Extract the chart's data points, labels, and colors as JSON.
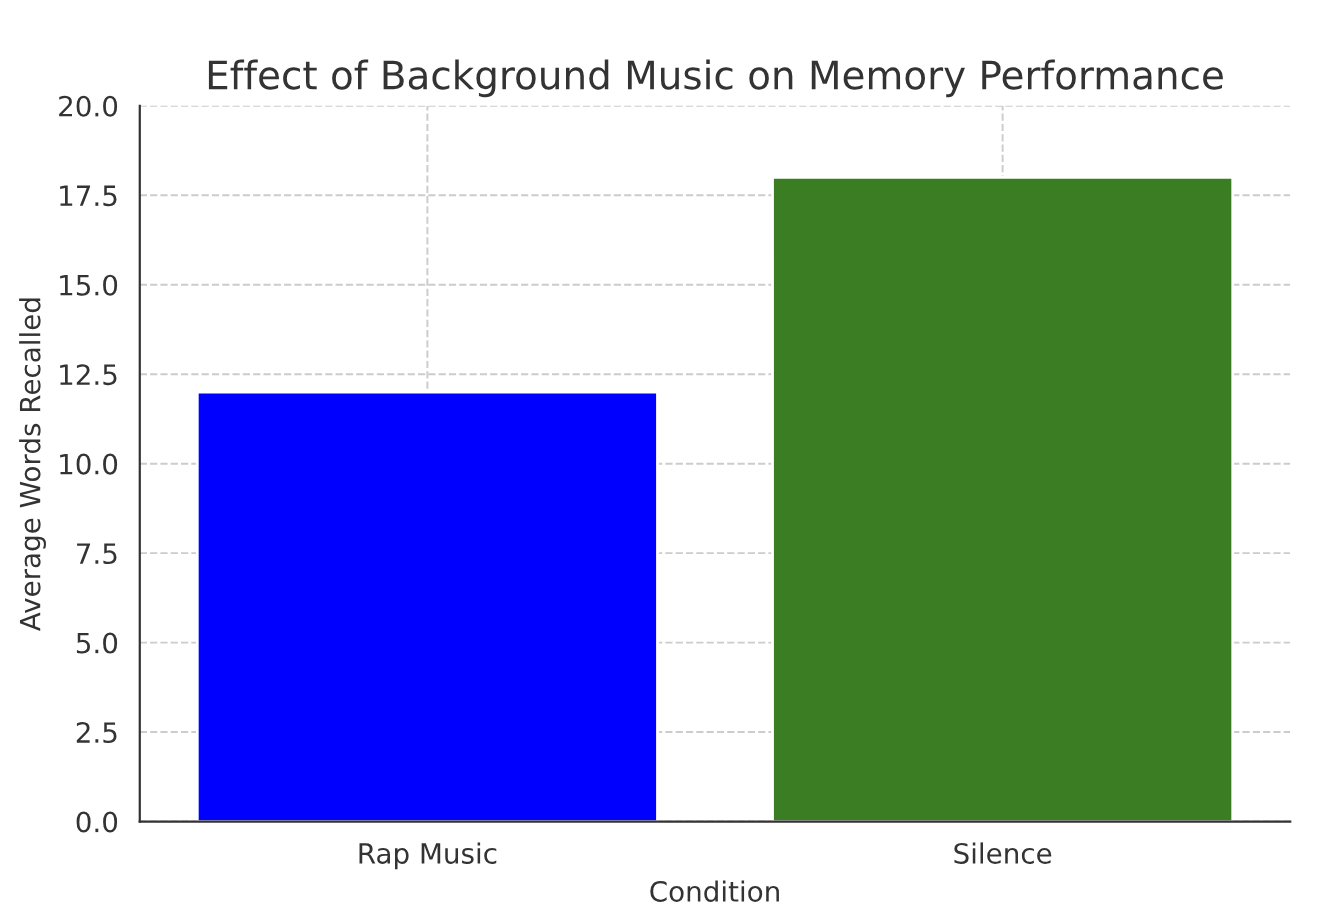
{
  "chart_data": {
    "type": "bar",
    "title": "Effect of Background Music on Memory Performance",
    "xlabel": "Condition",
    "ylabel": "Average Words Recalled",
    "categories": [
      "Rap Music",
      "Silence"
    ],
    "values": [
      12,
      18
    ],
    "colors": [
      "#0000ff",
      "#3a7d22"
    ],
    "ylim": [
      0,
      20
    ],
    "yticks": [
      {
        "value": 0,
        "label": "0.0"
      },
      {
        "value": 2.5,
        "label": "2.5"
      },
      {
        "value": 5,
        "label": "5.0"
      },
      {
        "value": 7.5,
        "label": "7.5"
      },
      {
        "value": 10,
        "label": "10.0"
      },
      {
        "value": 12.5,
        "label": "12.5"
      },
      {
        "value": 15,
        "label": "15.0"
      },
      {
        "value": 17.5,
        "label": "17.5"
      },
      {
        "value": 20,
        "label": "20.0"
      }
    ],
    "grid": true
  }
}
